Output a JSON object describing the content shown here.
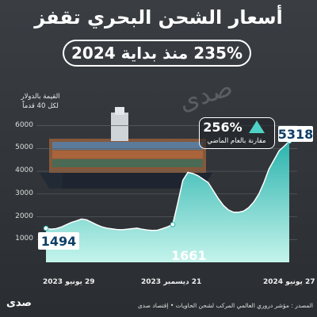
{
  "title": "أسعار الشحن البحري تقفز",
  "subtitle": "235% منذ بداية 2024",
  "chart_data": {
    "type": "area",
    "ylabel": "القيمة بالدولار\nلكل 40 قدماً",
    "ylim": [
      0,
      6300
    ],
    "yticks": [
      1000,
      2000,
      3000,
      4000,
      5000,
      6000
    ],
    "xtick_labels": [
      "29 يونيو 2023",
      "21 ديسمبر 2023",
      "27 يونيو 2024"
    ],
    "series": [
      {
        "values": [
          1494,
          1460,
          1480,
          1550,
          1650,
          1750,
          1820,
          1900,
          1870,
          1760,
          1650,
          1560,
          1500,
          1470,
          1440,
          1430,
          1450,
          1480,
          1500,
          1450,
          1420,
          1400,
          1410,
          1480,
          1560,
          1661,
          2600,
          3600,
          3950,
          3900,
          3800,
          3650,
          3500,
          3150,
          2800,
          2500,
          2300,
          2200,
          2200,
          2250,
          2400,
          2650,
          3000,
          3500,
          4100,
          4500,
          4900,
          5100,
          5318
        ]
      }
    ],
    "annotations": {
      "start": "1494",
      "mid": "1661",
      "end": "5318"
    }
  },
  "change": {
    "value": "256%",
    "note": "مقارنة بالعام الماضي"
  },
  "source": "المصدر : مؤشر دروري العالمي المركب لشحن الحاويات • إقتصاد صدى",
  "colors": {
    "background": "#2f3338",
    "area_top": "#2bb3ad",
    "area_bottom": "#c4f4ec",
    "line": "#ffffff",
    "accent": "#4fd1c5"
  }
}
